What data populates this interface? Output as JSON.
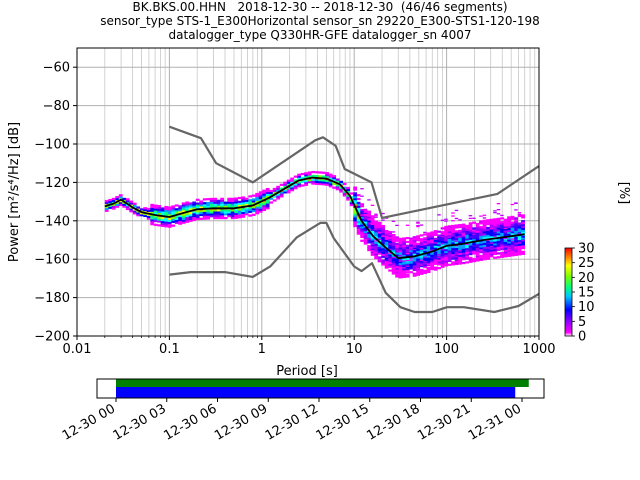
{
  "title": {
    "line1": "BK.BKS.00.HHN   2018-12-30 -- 2018-12-30  (46/46 segments)",
    "line2": "sensor_type STS-1_E300Horizontal sensor_sn 29220_E300-STS1-120-198",
    "line3": "datalogger_type Q330HR-GFE datalogger_sn 4007"
  },
  "chart_data": [
    {
      "type": "heatmap",
      "title": "BK.BKS.00.HHN   2018-12-30 -- 2018-12-30  (46/46 segments)",
      "xlabel": "Period [s]",
      "ylabel": "Power [m²/s⁴/Hz] [dB]",
      "x_scale": "log",
      "xlim": [
        0.01,
        1000
      ],
      "ylim": [
        -200,
        -50
      ],
      "x_ticks": [
        "0.01",
        "0.1",
        "1",
        "10",
        "100",
        "1000"
      ],
      "y_ticks": [
        "-60",
        "-80",
        "-100",
        "-120",
        "-140",
        "-160",
        "-180",
        "-200"
      ],
      "grid": true,
      "series": [
        {
          "name": "NHNM",
          "color": "#666666",
          "points": [
            [
              0.1,
              -91
            ],
            [
              0.22,
              -97
            ],
            [
              0.32,
              -110
            ],
            [
              0.8,
              -120
            ],
            [
              3.8,
              -98
            ],
            [
              4.6,
              -96.5
            ],
            [
              6.3,
              -101
            ],
            [
              7.9,
              -113
            ],
            [
              15.4,
              -120
            ],
            [
              20,
              -138.5
            ],
            [
              354.8,
              -126
            ],
            [
              1000,
              -111.5
            ]
          ]
        },
        {
          "name": "NLNM",
          "color": "#666666",
          "points": [
            [
              0.1,
              -168
            ],
            [
              0.17,
              -166.7
            ],
            [
              0.4,
              -166.7
            ],
            [
              0.8,
              -169.2
            ],
            [
              1.24,
              -163.7
            ],
            [
              2.4,
              -148.6
            ],
            [
              4.3,
              -141.1
            ],
            [
              5,
              -141.1
            ],
            [
              6,
              -149
            ],
            [
              10,
              -163.8
            ],
            [
              12,
              -166.2
            ],
            [
              15.6,
              -162.1
            ],
            [
              21.9,
              -177.5
            ],
            [
              31.6,
              -185
            ],
            [
              45,
              -187.5
            ],
            [
              70,
              -187.5
            ],
            [
              101,
              -185
            ],
            [
              154,
              -185
            ],
            [
              328,
              -187.5
            ],
            [
              600,
              -184.4
            ],
            [
              1000,
              -178
            ]
          ]
        },
        {
          "name": "mode",
          "color": "#000000",
          "points": [
            [
              0.02,
              -132.5
            ],
            [
              0.025,
              -131
            ],
            [
              0.03,
              -129
            ],
            [
              0.04,
              -133
            ],
            [
              0.05,
              -135.5
            ],
            [
              0.07,
              -137
            ],
            [
              0.1,
              -138
            ],
            [
              0.14,
              -136
            ],
            [
              0.2,
              -134
            ],
            [
              0.3,
              -133.5
            ],
            [
              0.5,
              -133.5
            ],
            [
              0.8,
              -132
            ],
            [
              1.2,
              -128
            ],
            [
              1.8,
              -123
            ],
            [
              2.5,
              -119
            ],
            [
              3.5,
              -117.5
            ],
            [
              5,
              -118
            ],
            [
              7,
              -121
            ],
            [
              9,
              -127
            ],
            [
              12,
              -140
            ],
            [
              16,
              -148
            ],
            [
              22,
              -154
            ],
            [
              30,
              -159.5
            ],
            [
              45,
              -158.5
            ],
            [
              70,
              -156
            ],
            [
              100,
              -153
            ],
            [
              150,
              -152
            ],
            [
              250,
              -150
            ],
            [
              500,
              -148
            ],
            [
              700,
              -147
            ]
          ]
        }
      ],
      "colorbar": {
        "label": "[%]",
        "range": [
          0,
          30
        ],
        "ticks": [
          "0",
          "5",
          "10",
          "15",
          "20",
          "25",
          "30"
        ]
      },
      "data_coverage": {
        "x_ticks": [
          "12-30 00",
          "12-30 03",
          "12-30 06",
          "12-30 09",
          "12-30 12",
          "12-30 15",
          "12-30 18",
          "12-30 21",
          "12-31 00"
        ],
        "bars": [
          {
            "name": "coverage-green",
            "color": "#008000",
            "start_hour": 0,
            "end_hour": 24.4
          },
          {
            "name": "coverage-blue",
            "color": "#0000ff",
            "start_hour": 0,
            "end_hour": 23.6
          }
        ]
      }
    }
  ]
}
